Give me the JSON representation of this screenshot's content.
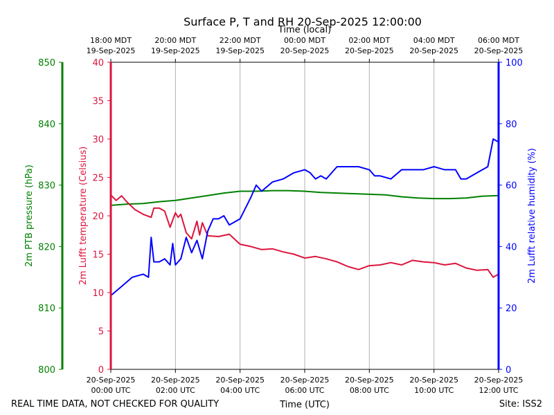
{
  "page": {
    "title": "Surface P, T and RH 20-Sep-2025 12:00:00",
    "footer_left": "REAL TIME DATA, NOT CHECKED FOR QUALITY",
    "footer_right": "Site: ISS2"
  },
  "colors": {
    "pressure": "#008000",
    "temperature": "#dc143c",
    "humidity": "#0000ff",
    "grid": "#b0b0b0"
  },
  "chart_data": {
    "type": "line",
    "title": "Surface P, T and RH 20-Sep-2025 12:00:00",
    "x_bottom": {
      "label": "Time (UTC)",
      "ticks": [
        {
          "x": "00:00",
          "line1": "20-Sep-2025",
          "line2": "00:00 UTC"
        },
        {
          "x": "02:00",
          "line1": "20-Sep-2025",
          "line2": "02:00 UTC"
        },
        {
          "x": "04:00",
          "line1": "20-Sep-2025",
          "line2": "04:00 UTC"
        },
        {
          "x": "06:00",
          "line1": "20-Sep-2025",
          "line2": "06:00 UTC"
        },
        {
          "x": "08:00",
          "line1": "20-Sep-2025",
          "line2": "08:00 UTC"
        },
        {
          "x": "10:00",
          "line1": "20-Sep-2025",
          "line2": "10:00 UTC"
        },
        {
          "x": "12:00",
          "line1": "20-Sep-2025",
          "line2": "12:00 UTC"
        }
      ]
    },
    "x_top": {
      "label": "Time (local)",
      "ticks": [
        {
          "x": "00:00",
          "line1": "18:00 MDT",
          "line2": "19-Sep-2025"
        },
        {
          "x": "02:00",
          "line1": "20:00 MDT",
          "line2": "19-Sep-2025"
        },
        {
          "x": "04:00",
          "line1": "22:00 MDT",
          "line2": "19-Sep-2025"
        },
        {
          "x": "06:00",
          "line1": "00:00 MDT",
          "line2": "20-Sep-2025"
        },
        {
          "x": "08:00",
          "line1": "02:00 MDT",
          "line2": "20-Sep-2025"
        },
        {
          "x": "10:00",
          "line1": "04:00 MDT",
          "line2": "20-Sep-2025"
        },
        {
          "x": "12:00",
          "line1": "06:00 MDT",
          "line2": "20-Sep-2025"
        }
      ]
    },
    "x_range": [
      "00:00",
      "12:00"
    ],
    "grid": "vertical",
    "axes": {
      "pressure": {
        "label": "2m PTB pressure (hPa)",
        "range": [
          800,
          850
        ],
        "ticks": [
          800,
          810,
          820,
          830,
          840,
          850
        ],
        "side": "left-outer"
      },
      "temperature": {
        "label": "2m Lufft temperature (Celsius)",
        "range": [
          0,
          40
        ],
        "ticks": [
          0,
          5,
          10,
          15,
          20,
          25,
          30,
          35,
          40
        ],
        "side": "left"
      },
      "humidity": {
        "label": "2m Lufft relative humidity (%)",
        "range": [
          0,
          100
        ],
        "ticks": [
          0,
          20,
          40,
          60,
          80,
          100
        ],
        "side": "right"
      }
    },
    "series": [
      {
        "key": "pressure",
        "axis": "pressure",
        "x": [
          "00:00",
          "00:30",
          "01:00",
          "01:30",
          "02:00",
          "02:30",
          "03:00",
          "03:30",
          "04:00",
          "04:30",
          "05:00",
          "05:30",
          "06:00",
          "06:30",
          "07:00",
          "07:30",
          "08:00",
          "08:30",
          "09:00",
          "09:30",
          "10:00",
          "10:30",
          "11:00",
          "11:30",
          "12:00"
        ],
        "y": [
          826.7,
          826.9,
          827.0,
          827.3,
          827.5,
          827.9,
          828.3,
          828.7,
          829.0,
          829.0,
          829.1,
          829.1,
          829.0,
          828.8,
          828.7,
          828.6,
          828.5,
          828.4,
          828.1,
          827.9,
          827.8,
          827.8,
          827.9,
          828.2,
          828.3
        ]
      },
      {
        "key": "temperature",
        "axis": "temperature",
        "x": [
          "00:00",
          "00:10",
          "00:20",
          "00:30",
          "00:45",
          "01:00",
          "01:15",
          "01:20",
          "01:30",
          "01:40",
          "01:50",
          "02:00",
          "02:05",
          "02:10",
          "02:20",
          "02:30",
          "02:40",
          "02:45",
          "02:50",
          "03:00",
          "03:20",
          "03:40",
          "04:00",
          "04:20",
          "04:40",
          "05:00",
          "05:20",
          "05:40",
          "06:00",
          "06:20",
          "06:40",
          "07:00",
          "07:20",
          "07:40",
          "08:00",
          "08:20",
          "08:40",
          "09:00",
          "09:20",
          "09:40",
          "10:00",
          "10:20",
          "10:40",
          "11:00",
          "11:20",
          "11:40",
          "11:50",
          "12:00"
        ],
        "y": [
          22.7,
          22.0,
          22.6,
          21.8,
          20.8,
          20.2,
          19.8,
          21.0,
          21.0,
          20.6,
          18.5,
          20.4,
          19.8,
          20.2,
          17.8,
          17.0,
          19.3,
          17.5,
          19.1,
          17.4,
          17.3,
          17.6,
          16.3,
          16.0,
          15.6,
          15.7,
          15.3,
          15.0,
          14.5,
          14.7,
          14.4,
          14.0,
          13.4,
          13.0,
          13.5,
          13.6,
          13.9,
          13.6,
          14.2,
          14.0,
          13.9,
          13.6,
          13.8,
          13.2,
          12.9,
          13.0,
          12.0,
          12.4
        ]
      },
      {
        "key": "humidity",
        "axis": "humidity",
        "x": [
          "00:00",
          "00:20",
          "00:40",
          "01:00",
          "01:10",
          "01:15",
          "01:20",
          "01:30",
          "01:40",
          "01:50",
          "01:55",
          "02:00",
          "02:10",
          "02:20",
          "02:30",
          "02:40",
          "02:50",
          "03:00",
          "03:10",
          "03:20",
          "03:30",
          "03:40",
          "04:00",
          "04:20",
          "04:30",
          "04:40",
          "05:00",
          "05:20",
          "05:40",
          "06:00",
          "06:10",
          "06:20",
          "06:30",
          "06:40",
          "07:00",
          "07:20",
          "07:40",
          "08:00",
          "08:10",
          "08:20",
          "08:40",
          "09:00",
          "09:20",
          "09:40",
          "10:00",
          "10:20",
          "10:40",
          "10:50",
          "11:00",
          "11:20",
          "11:40",
          "11:50",
          "12:00"
        ],
        "y": [
          24,
          27,
          30,
          31,
          30,
          43,
          35,
          35,
          36,
          34,
          41,
          34,
          36,
          43,
          38,
          42,
          36,
          45,
          49,
          49,
          50,
          47,
          49,
          56,
          60,
          58,
          61,
          62,
          64,
          65,
          64,
          62,
          63,
          62,
          66,
          66,
          66,
          65,
          63,
          63,
          62,
          65,
          65,
          65,
          66,
          65,
          65,
          62,
          62,
          64,
          66,
          75,
          74
        ]
      }
    ]
  }
}
